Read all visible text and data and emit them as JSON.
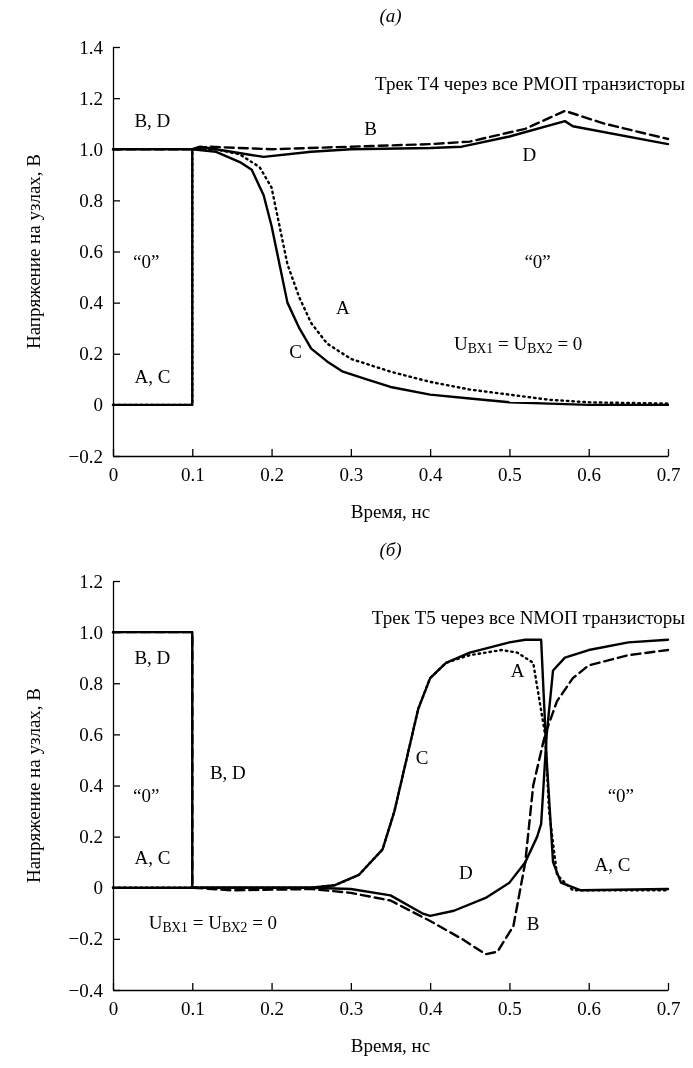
{
  "chart_data": [
    {
      "type": "line",
      "title": "(а)",
      "subtitle": "Трек T4 через все PМОП транзисторы",
      "xlabel": "Время, нс",
      "ylabel": "Напряжение на узлах, В",
      "xlim": [
        0,
        0.7
      ],
      "ylim": [
        -0.2,
        1.4
      ],
      "xticks": [
        0,
        0.1,
        0.2,
        0.3,
        0.4,
        0.5,
        0.6,
        0.7
      ],
      "yticks": [
        {
          "value": -0.2,
          "label": "−0.2"
        },
        0,
        0.2,
        0.4,
        0.6,
        0.8,
        {
          "value": 1.0,
          "label": "1.0"
        },
        1.2,
        1.4
      ],
      "grid": false,
      "marker": "none",
      "series": [
        {
          "color": "#000000",
          "line_style": "dotted",
          "x": [
            0,
            0.1,
            0.1,
            0.13,
            0.16,
            0.185,
            0.2,
            0.21,
            0.22,
            0.235,
            0.25,
            0.27,
            0.3,
            0.35,
            0.4,
            0.45,
            0.5,
            0.55,
            0.6,
            0.7
          ],
          "values": [
            0,
            0,
            1.0,
            1.0,
            0.98,
            0.93,
            0.85,
            0.7,
            0.55,
            0.42,
            0.32,
            0.24,
            0.18,
            0.13,
            0.09,
            0.06,
            0.04,
            0.02,
            0.01,
            0.005
          ]
        },
        {
          "color": "#000000",
          "line_style": "dashed",
          "x": [
            0,
            0.1,
            0.12,
            0.2,
            0.3,
            0.4,
            0.45,
            0.52,
            0.57,
            0.62,
            0.7
          ],
          "values": [
            1.0,
            1.0,
            1.01,
            1.0,
            1.01,
            1.02,
            1.03,
            1.08,
            1.15,
            1.1,
            1.04
          ]
        },
        {
          "color": "#000000",
          "line_style": "solid",
          "x": [
            0,
            0.1,
            0.1,
            0.13,
            0.16,
            0.175,
            0.19,
            0.2,
            0.21,
            0.22,
            0.235,
            0.25,
            0.27,
            0.29,
            0.32,
            0.35,
            0.4,
            0.45,
            0.5,
            0.55,
            0.6,
            0.7
          ],
          "values": [
            0,
            0,
            1.0,
            0.99,
            0.95,
            0.92,
            0.82,
            0.7,
            0.55,
            0.4,
            0.3,
            0.22,
            0.17,
            0.13,
            0.1,
            0.07,
            0.04,
            0.025,
            0.01,
            0.005,
            0,
            0
          ]
        },
        {
          "color": "#000000",
          "line_style": "solid",
          "x": [
            0,
            0.1,
            0.11,
            0.13,
            0.19,
            0.25,
            0.3,
            0.4,
            0.44,
            0.5,
            0.57,
            0.58,
            0.7
          ],
          "values": [
            1.0,
            1.0,
            1.01,
            1.0,
            0.97,
            0.99,
            1.0,
            1.005,
            1.01,
            1.05,
            1.11,
            1.09,
            1.02
          ]
        }
      ],
      "annotations": [
        "B, D",
        "A, C",
        "B",
        "D",
        "A",
        "C",
        "“0”",
        "“0”",
        "U$_{ВХ1}$ = U$_{ВХ2}$ = 0"
      ]
    },
    {
      "type": "line",
      "title": "(б)",
      "subtitle": "Трек T5 через все NМОП транзисторы",
      "xlabel": "Время, нс",
      "ylabel": "Напряжение на узлах, В",
      "xlim": [
        0,
        0.7
      ],
      "ylim": [
        -0.4,
        1.2
      ],
      "xticks": [
        0,
        0.1,
        0.2,
        0.3,
        0.4,
        0.5,
        0.6,
        0.7
      ],
      "yticks": [
        {
          "value": -0.4,
          "label": "−0.4"
        },
        {
          "value": -0.2,
          "label": "−0.2"
        },
        0,
        0.2,
        0.4,
        0.6,
        0.8,
        {
          "value": 1.0,
          "label": "1.0"
        },
        1.2
      ],
      "grid": false,
      "marker": "none",
      "series": [
        {
          "color": "#000000",
          "line_style": "dotted",
          "x": [
            0,
            0.25,
            0.28,
            0.31,
            0.34,
            0.355,
            0.37,
            0.385,
            0.4,
            0.42,
            0.45,
            0.49,
            0.51,
            0.53,
            0.545,
            0.55,
            0.56,
            0.58,
            0.7
          ],
          "values": [
            0,
            0,
            0.01,
            0.05,
            0.15,
            0.3,
            0.5,
            0.7,
            0.82,
            0.88,
            0.91,
            0.93,
            0.92,
            0.88,
            0.6,
            0.3,
            0.05,
            -0.01,
            -0.01
          ]
        },
        {
          "color": "#000000",
          "line_style": "dashed",
          "x": [
            0,
            0.1,
            0.1,
            0.15,
            0.25,
            0.3,
            0.35,
            0.4,
            0.44,
            0.47,
            0.485,
            0.505,
            0.52,
            0.53,
            0.545,
            0.56,
            0.58,
            0.6,
            0.65,
            0.7
          ],
          "values": [
            1.0,
            1.0,
            0,
            -0.01,
            -0.005,
            -0.02,
            -0.05,
            -0.13,
            -0.2,
            -0.26,
            -0.25,
            -0.15,
            0.1,
            0.4,
            0.6,
            0.73,
            0.82,
            0.87,
            0.91,
            0.93
          ]
        },
        {
          "color": "#000000",
          "line_style": "solid",
          "x": [
            0,
            0.25,
            0.28,
            0.31,
            0.34,
            0.355,
            0.37,
            0.385,
            0.4,
            0.42,
            0.45,
            0.5,
            0.52,
            0.54,
            0.547,
            0.555,
            0.565,
            0.59,
            0.7
          ],
          "values": [
            0,
            0,
            0.01,
            0.05,
            0.15,
            0.3,
            0.5,
            0.7,
            0.82,
            0.88,
            0.92,
            0.96,
            0.97,
            0.97,
            0.5,
            0.1,
            0.02,
            -0.01,
            -0.005
          ]
        },
        {
          "color": "#000000",
          "line_style": "solid",
          "x": [
            0,
            0.1,
            0.1,
            0.25,
            0.3,
            0.35,
            0.39,
            0.4,
            0.43,
            0.47,
            0.5,
            0.52,
            0.535,
            0.54,
            0.547,
            0.555,
            0.57,
            0.6,
            0.65,
            0.7
          ],
          "values": [
            1.0,
            1.0,
            0,
            0,
            -0.005,
            -0.03,
            -0.1,
            -0.11,
            -0.09,
            -0.04,
            0.02,
            0.1,
            0.2,
            0.25,
            0.6,
            0.85,
            0.9,
            0.93,
            0.96,
            0.97
          ]
        }
      ],
      "annotations": [
        "B, D",
        "A, C",
        "B, D",
        "A, C",
        "C",
        "A",
        "D",
        "B",
        "“0”",
        "“0”",
        "U$_{ВХ1}$ = U$_{ВХ2}$ = 0"
      ]
    }
  ]
}
